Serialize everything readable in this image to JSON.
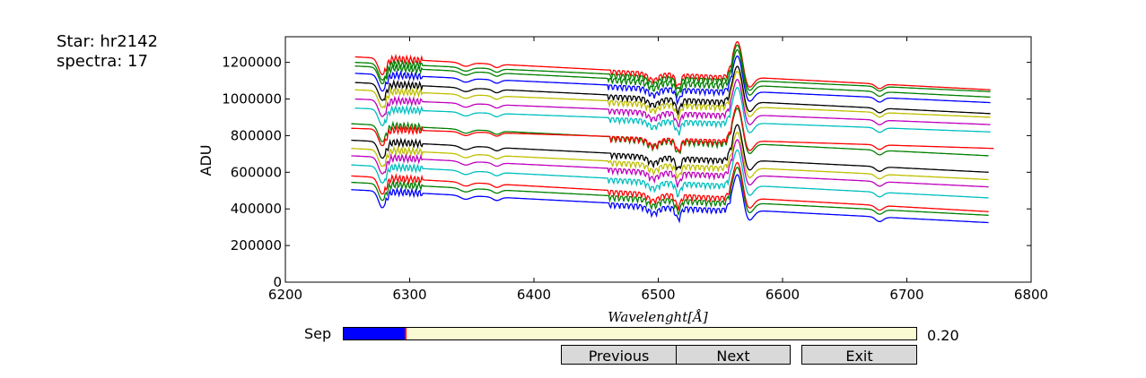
{
  "info": {
    "star_line": "Star: hr2142",
    "spectra_line": "spectra: 17"
  },
  "controls": {
    "sep_label": "Sep",
    "sep_value_text": "0.20",
    "sep_fraction": 0.11,
    "previous_label": "Previous",
    "next_label": "Next",
    "exit_label": "Exit"
  },
  "chart_data": {
    "type": "line",
    "title": "",
    "xlabel": "Wavelenght[Å]",
    "ylabel": "ADU",
    "xlim": [
      6200,
      6800
    ],
    "ylim": [
      0,
      1340000
    ],
    "xticks": [
      6200,
      6300,
      6400,
      6500,
      6600,
      6700,
      6800
    ],
    "yticks": [
      0,
      200000,
      400000,
      600000,
      800000,
      1000000,
      1200000
    ],
    "grid": false,
    "legend": "none",
    "x_start": 6253,
    "x_end": 6770,
    "colors": [
      "#0000ff",
      "#008000",
      "#ff0000",
      "#00bfbf",
      "#bf00bf",
      "#bfbf00",
      "#000000"
    ],
    "series": [
      {
        "color": "#0000ff",
        "values": [
          [
            6253,
            505000
          ],
          [
            6766,
            325000
          ]
        ]
      },
      {
        "color": "#008000",
        "values": [
          [
            6253,
            545000
          ],
          [
            6766,
            365000
          ]
        ]
      },
      {
        "color": "#ff0000",
        "values": [
          [
            6253,
            580000
          ],
          [
            6766,
            385000
          ]
        ]
      },
      {
        "color": "#00bfbf",
        "values": [
          [
            6253,
            640000
          ],
          [
            6766,
            460000
          ]
        ]
      },
      {
        "color": "#bf00bf",
        "values": [
          [
            6253,
            690000
          ],
          [
            6766,
            520000
          ]
        ]
      },
      {
        "color": "#bfbf00",
        "values": [
          [
            6253,
            730000
          ],
          [
            6766,
            560000
          ]
        ]
      },
      {
        "color": "#000000",
        "values": [
          [
            6253,
            775000
          ],
          [
            6766,
            600000
          ]
        ]
      },
      {
        "color": "#008000",
        "values": [
          [
            6253,
            865000
          ],
          [
            6766,
            690000
          ]
        ]
      },
      {
        "color": "#ff0000",
        "values": [
          [
            6253,
            840000
          ],
          [
            6770,
            730000
          ]
        ]
      },
      {
        "color": "#00bfbf",
        "values": [
          [
            6256,
            950000
          ],
          [
            6768,
            820000
          ]
        ]
      },
      {
        "color": "#bf00bf",
        "values": [
          [
            6256,
            1000000
          ],
          [
            6768,
            860000
          ]
        ]
      },
      {
        "color": "#bfbf00",
        "values": [
          [
            6256,
            1050000
          ],
          [
            6768,
            900000
          ]
        ]
      },
      {
        "color": "#000000",
        "values": [
          [
            6256,
            1090000
          ],
          [
            6768,
            920000
          ]
        ]
      },
      {
        "color": "#0000ff",
        "values": [
          [
            6256,
            1140000
          ],
          [
            6768,
            980000
          ]
        ]
      },
      {
        "color": "#008000",
        "values": [
          [
            6256,
            1180000
          ],
          [
            6768,
            1010000
          ]
        ]
      },
      {
        "color": "#ff0000",
        "values": [
          [
            6256,
            1230000
          ],
          [
            6768,
            1050000
          ]
        ]
      },
      {
        "color": "#008000",
        "values": [
          [
            6256,
            1200000
          ],
          [
            6768,
            1040000
          ]
        ]
      }
    ],
    "features": [
      {
        "x": 6278,
        "depth": 90000,
        "width": 3
      },
      {
        "x": 6345,
        "depth": 20000,
        "width": 4
      },
      {
        "x": 6370,
        "depth": 18000,
        "width": 3
      },
      {
        "x": 6496,
        "depth": 35000,
        "width": 4
      },
      {
        "x": 6516,
        "depth": 60000,
        "width": 2
      },
      {
        "x": 6678,
        "depth": 25000,
        "width": 3
      }
    ],
    "emission": {
      "x": 6564,
      "height": 200000,
      "width": 4
    }
  }
}
